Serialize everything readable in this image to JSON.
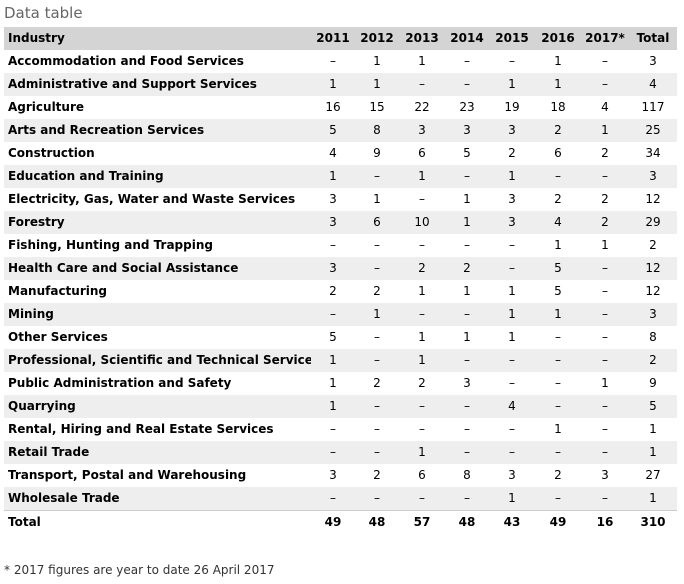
{
  "caption": "Data table",
  "headers": [
    "Industry",
    "2011",
    "2012",
    "2013",
    "2014",
    "2015",
    "2016",
    "2017*",
    "Total"
  ],
  "rows": [
    [
      "Accommodation and Food Services",
      "–",
      "1",
      "1",
      "–",
      "–",
      "1",
      "–",
      "3"
    ],
    [
      "Administrative and Support Services",
      "1",
      "1",
      "–",
      "–",
      "1",
      "1",
      "–",
      "4"
    ],
    [
      "Agriculture",
      "16",
      "15",
      "22",
      "23",
      "19",
      "18",
      "4",
      "117"
    ],
    [
      "Arts and Recreation Services",
      "5",
      "8",
      "3",
      "3",
      "3",
      "2",
      "1",
      "25"
    ],
    [
      "Construction",
      "4",
      "9",
      "6",
      "5",
      "2",
      "6",
      "2",
      "34"
    ],
    [
      "Education and Training",
      "1",
      "–",
      "1",
      "–",
      "1",
      "–",
      "–",
      "3"
    ],
    [
      "Electricity, Gas, Water and Waste Services",
      "3",
      "1",
      "–",
      "1",
      "3",
      "2",
      "2",
      "12"
    ],
    [
      "Forestry",
      "3",
      "6",
      "10",
      "1",
      "3",
      "4",
      "2",
      "29"
    ],
    [
      "Fishing, Hunting and Trapping",
      "–",
      "–",
      "–",
      "–",
      "–",
      "1",
      "1",
      "2"
    ],
    [
      "Health Care and Social Assistance",
      "3",
      "–",
      "2",
      "2",
      "–",
      "5",
      "–",
      "12"
    ],
    [
      "Manufacturing",
      "2",
      "2",
      "1",
      "1",
      "1",
      "5",
      "–",
      "12"
    ],
    [
      "Mining",
      "–",
      "1",
      "–",
      "–",
      "1",
      "1",
      "–",
      "3"
    ],
    [
      "Other Services",
      "5",
      "–",
      "1",
      "1",
      "1",
      "–",
      "–",
      "8"
    ],
    [
      "Professional, Scientific and Technical Services",
      "1",
      "–",
      "1",
      "–",
      "–",
      "–",
      "–",
      "2"
    ],
    [
      "Public Administration and Safety",
      "1",
      "2",
      "2",
      "3",
      "–",
      "–",
      "1",
      "9"
    ],
    [
      "Quarrying",
      "1",
      "–",
      "–",
      "–",
      "4",
      "–",
      "–",
      "5"
    ],
    [
      "Rental, Hiring and Real Estate Services",
      "–",
      "–",
      "–",
      "–",
      "–",
      "1",
      "–",
      "1"
    ],
    [
      "Retail Trade",
      "–",
      "–",
      "1",
      "–",
      "–",
      "–",
      "–",
      "1"
    ],
    [
      "Transport, Postal and Warehousing",
      "3",
      "2",
      "6",
      "8",
      "3",
      "2",
      "3",
      "27"
    ],
    [
      "Wholesale Trade",
      "–",
      "–",
      "–",
      "–",
      "1",
      "–",
      "–",
      "1"
    ]
  ],
  "total_row": [
    "Total",
    "49",
    "48",
    "57",
    "48",
    "43",
    "49",
    "16",
    "310"
  ],
  "footnote": "* 2017 figures are year to date 26 April 2017",
  "colors": {
    "header_background": "#d4d4d4",
    "stripe_background": "#eeeeee",
    "caption_text": "#666666"
  }
}
